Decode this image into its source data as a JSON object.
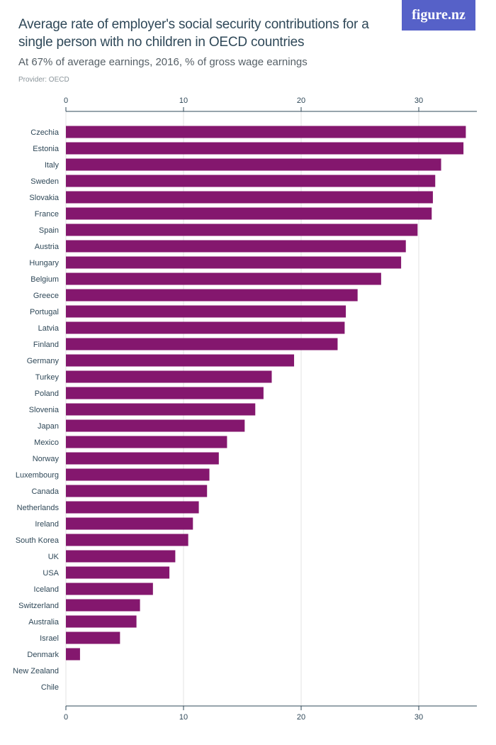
{
  "header": {
    "title": "Average rate of employer's social security contributions for a single person with no children in OECD countries",
    "subtitle": "At 67% of average earnings, 2016, % of gross wage earnings",
    "provider": "Provider: OECD",
    "logo_text": "figure.nz"
  },
  "colors": {
    "bar": "#84176e",
    "logo_bg": "#5661c8",
    "text": "#2f4858"
  },
  "chart_data": {
    "type": "bar",
    "orientation": "horizontal",
    "title": "Average rate of employer's social security contributions for a single person with no children in OECD countries",
    "subtitle": "At 67% of average earnings, 2016, % of gross wage earnings",
    "xlabel": "",
    "ylabel": "",
    "xlim": [
      0,
      35
    ],
    "ticks": [
      0,
      10,
      20,
      30
    ],
    "grid": true,
    "categories": [
      "Czechia",
      "Estonia",
      "Italy",
      "Sweden",
      "Slovakia",
      "France",
      "Spain",
      "Austria",
      "Hungary",
      "Belgium",
      "Greece",
      "Portugal",
      "Latvia",
      "Finland",
      "Germany",
      "Turkey",
      "Poland",
      "Slovenia",
      "Japan",
      "Mexico",
      "Norway",
      "Luxembourg",
      "Canada",
      "Netherlands",
      "Ireland",
      "South Korea",
      "UK",
      "USA",
      "Iceland",
      "Switzerland",
      "Australia",
      "Israel",
      "Denmark",
      "New Zealand",
      "Chile"
    ],
    "values": [
      34,
      33.8,
      31.9,
      31.4,
      31.2,
      31.1,
      29.9,
      28.9,
      28.5,
      26.8,
      24.8,
      23.8,
      23.7,
      23.1,
      19.4,
      17.5,
      16.8,
      16.1,
      15.2,
      13.7,
      13,
      12.2,
      12,
      11.3,
      10.8,
      10.4,
      9.3,
      8.8,
      7.4,
      6.3,
      6,
      4.6,
      1.2,
      0,
      0
    ]
  }
}
